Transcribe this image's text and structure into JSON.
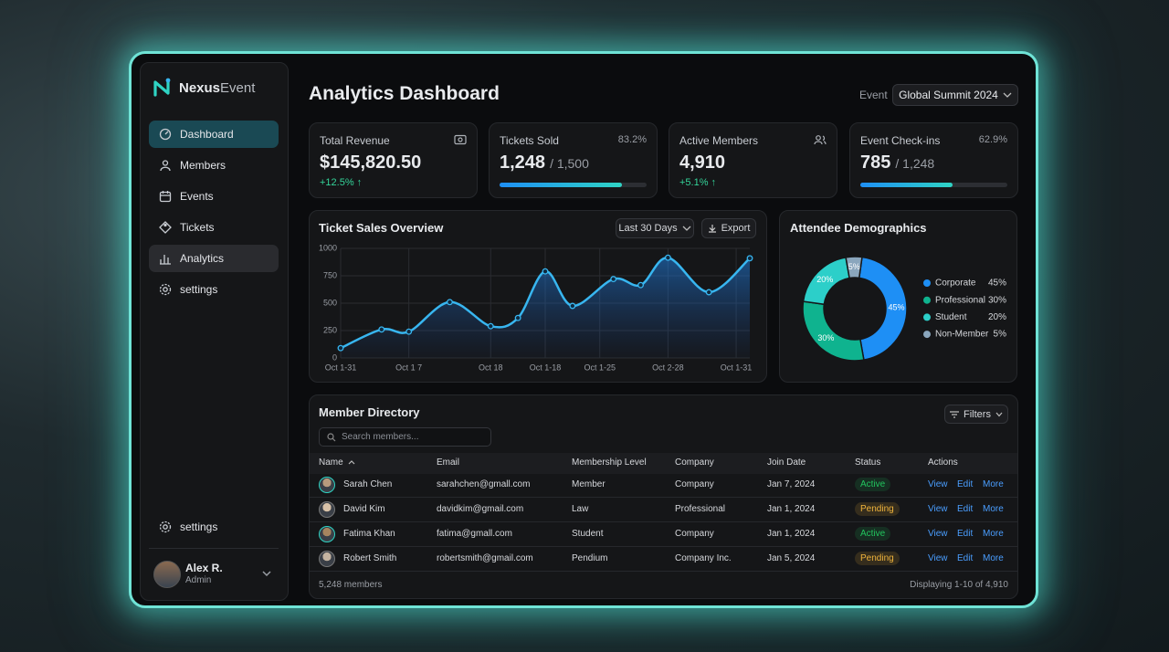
{
  "brand": {
    "name": "Nexus",
    "suffix": "Event"
  },
  "nav": [
    "Dashboard",
    "Members",
    "Events",
    "Tickets",
    "Analytics",
    "settings"
  ],
  "nav_bottom": "settings",
  "user": {
    "name": "Alex R.",
    "role": "Admin"
  },
  "header": {
    "title": "Analytics Dashboard",
    "event_label": "Event",
    "event": "Global Summit 2024"
  },
  "stats": [
    {
      "label": "Total Revenue",
      "value": "$145,820.50",
      "change": "+12.5% ↑"
    },
    {
      "label": "Tickets Sold",
      "value": "1,248",
      "total": "/ 1,500",
      "progress": {
        "value": 83.2,
        "label": "83.2%"
      }
    },
    {
      "label": "Active Members",
      "value": "4,910",
      "change": "+5.1% ↑"
    },
    {
      "label": "Event Check-ins",
      "value": "785",
      "total": "/ 1,248",
      "progress": {
        "value": 62.9,
        "label": "62.9%"
      }
    }
  ],
  "chart_data": [
    {
      "type": "line",
      "title": "Ticket Sales Overview",
      "controls": [
        "Last 30 Days",
        "Export"
      ],
      "x": [
        0,
        3,
        5,
        8,
        11,
        13,
        15,
        17,
        20,
        22,
        24,
        27,
        30
      ],
      "values": [
        90,
        260,
        240,
        510,
        290,
        365,
        790,
        475,
        720,
        665,
        915,
        600,
        910
      ],
      "color": "#38b6f0",
      "xlim": [
        0,
        30
      ],
      "xticks": [
        {
          "value": 0,
          "label": "Oct 1-31"
        },
        {
          "value": 5,
          "label": "Oct 1 7"
        },
        {
          "value": 11,
          "label": "Oct 18"
        },
        {
          "value": 15,
          "label": "Oct 1-18"
        },
        {
          "value": 19,
          "label": "Oct 1-25"
        },
        {
          "value": 24,
          "label": "Oct 2-28"
        },
        {
          "value": 29,
          "label": "Oct 1-31"
        }
      ],
      "ylim": [
        0,
        1000
      ],
      "yticks": [
        0,
        250,
        500,
        750,
        1000
      ],
      "grid": true
    },
    {
      "type": "pie",
      "title": "Attendee Demographics",
      "categories": [
        "Corporate",
        "Professional",
        "Student",
        "Non-Member"
      ],
      "values": [
        45,
        30,
        20,
        5
      ],
      "value_labels": [
        "45%",
        "30%",
        "20%",
        "5%"
      ],
      "colors": [
        "#1e8ff5",
        "#0fb38f",
        "#2ccfc9",
        "#8aa6bd"
      ]
    }
  ],
  "table": {
    "title": "Member Directory",
    "search": "Search members...",
    "filter": "Filters",
    "columns": [
      "Name",
      "Email",
      "Membership Level",
      "Company",
      "Join Date",
      "Status",
      "Actions"
    ],
    "rows": [
      {
        "cells": [
          "Sarah Chen",
          "sarahchen@gmall.com",
          "Member",
          "Company",
          "Jan 7, 2024"
        ],
        "status": {
          "label": "Active",
          "color": "#22c55e"
        }
      },
      {
        "cells": [
          "David Kim",
          "davidkim@gmail.com",
          "Law",
          "Professional",
          "Jan 1, 2024"
        ],
        "status": {
          "label": "Pending",
          "color": "#f0b43c"
        }
      },
      {
        "cells": [
          "Fatima Khan",
          "fatima@gmall.com",
          "Student",
          "Company",
          "Jan 1, 2024"
        ],
        "status": {
          "label": "Active",
          "color": "#22c55e"
        }
      },
      {
        "cells": [
          "Robert Smith",
          "robertsmith@gmail.com",
          "Pendium",
          "Company Inc.",
          "Jan 5, 2024"
        ],
        "status": {
          "label": "Pending",
          "color": "#f0b43c"
        }
      }
    ],
    "actions": [
      "View",
      "Edit",
      "More"
    ],
    "footer": {
      "count": "5,248 members",
      "range": "Displaying 1-10 of 4,910"
    }
  }
}
